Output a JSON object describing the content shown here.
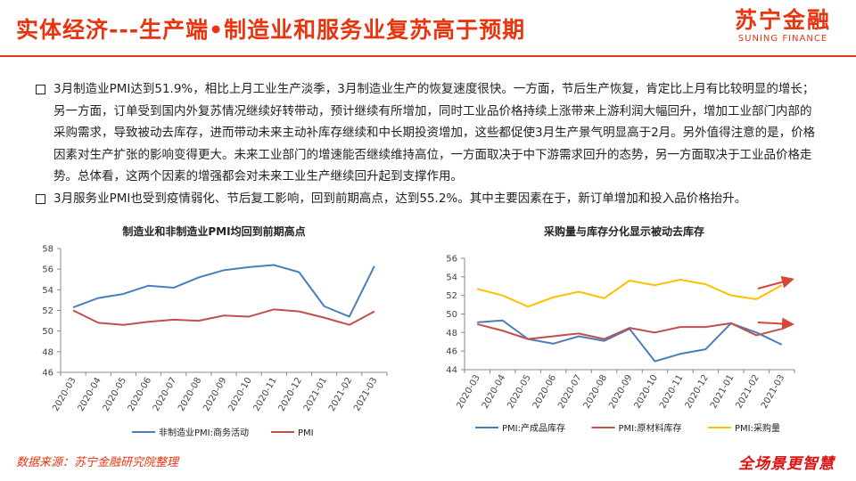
{
  "header": {
    "title": "实体经济---生产端•制造业和服务业复苏高于预期",
    "logo_cn": "苏宁金融",
    "logo_en": "SUNING FINANCE"
  },
  "bullets": [
    "3月制造业PMI达到51.9%，相比上月工业生产淡季，3月制造业生产的恢复速度很快。一方面，节后生产恢复，肯定比上月有比较明显的增长；另一方面，订单受到国内外复苏情况继续好转带动，预计继续有所增加，同时工业品价格持续上涨带来上游利润大幅回升，增加工业部门内部的采购需求，导致被动去库存，进而带动未来主动补库存继续和中长期投资增加，这些都促使3月生产景气明显高于2月。另外值得注意的是，价格因素对生产扩张的影响变得更大。未来工业部门的增速能否继续维持高位，一方面取决于中下游需求回升的态势，另一方面取决于工业品价格走势。总体看，这两个因素的增强都会对未来工业生产继续回升起到支撑作用。",
    "3月服务业PMI也受到疫情弱化、节后复工影响，回到前期高点，达到55.2%。其中主要因素在于，新订单增加和投入品价格抬升。"
  ],
  "footer": {
    "source": "数据来源：苏宁金融研究院整理",
    "slogan": "全场景更智慧"
  },
  "chart_data": [
    {
      "type": "line",
      "title": "制造业和非制造业PMI均回到前期高点",
      "categories": [
        "2020-03",
        "2020-04",
        "2020-05",
        "2020-06",
        "2020-07",
        "2020-08",
        "2020-09",
        "2020-10",
        "2020-11",
        "2020-12",
        "2021-01",
        "2021-02",
        "2021-03"
      ],
      "ylim": [
        46,
        58
      ],
      "yticks": [
        46,
        48,
        50,
        52,
        54,
        56,
        58
      ],
      "grid": false,
      "legend": "bottom",
      "series": [
        {
          "name": "非制造业PMI:商务活动",
          "color": "#4a7ebb",
          "values": [
            52.3,
            53.2,
            53.6,
            54.4,
            54.2,
            55.2,
            55.9,
            56.2,
            56.4,
            55.7,
            52.4,
            51.4,
            56.3
          ]
        },
        {
          "name": "PMI",
          "color": "#c0504d",
          "values": [
            52.0,
            50.8,
            50.6,
            50.9,
            51.1,
            51.0,
            51.5,
            51.4,
            52.1,
            51.9,
            51.3,
            50.6,
            51.9
          ]
        }
      ]
    },
    {
      "type": "line",
      "title": "采购量与库存分化显示被动去库存",
      "categories": [
        "2020-03",
        "2020-04",
        "2020-05",
        "2020-06",
        "2020-07",
        "2020-08",
        "2020-09",
        "2020-10",
        "2020-11",
        "2020-12",
        "2021-01",
        "2021-02",
        "2021-03"
      ],
      "ylim": [
        44,
        56
      ],
      "yticks": [
        44,
        46,
        48,
        50,
        52,
        54,
        56
      ],
      "grid": false,
      "legend": "bottom",
      "series": [
        {
          "name": "PMI:产成品库存",
          "color": "#4a7ebb",
          "values": [
            49.1,
            49.3,
            47.3,
            46.8,
            47.6,
            47.1,
            48.4,
            44.9,
            45.7,
            46.2,
            49.0,
            48.0,
            46.7
          ]
        },
        {
          "name": "PMI:原材料库存",
          "color": "#c0504d",
          "values": [
            48.9,
            48.2,
            47.3,
            47.6,
            47.9,
            47.3,
            48.5,
            48.0,
            48.6,
            48.6,
            49.0,
            47.7,
            48.4
          ]
        },
        {
          "name": "PMI:采购量",
          "color": "#ffc000",
          "values": [
            52.7,
            52.0,
            50.8,
            51.8,
            52.4,
            51.7,
            53.6,
            53.1,
            53.7,
            53.2,
            52.0,
            51.6,
            53.1
          ]
        }
      ]
    }
  ]
}
